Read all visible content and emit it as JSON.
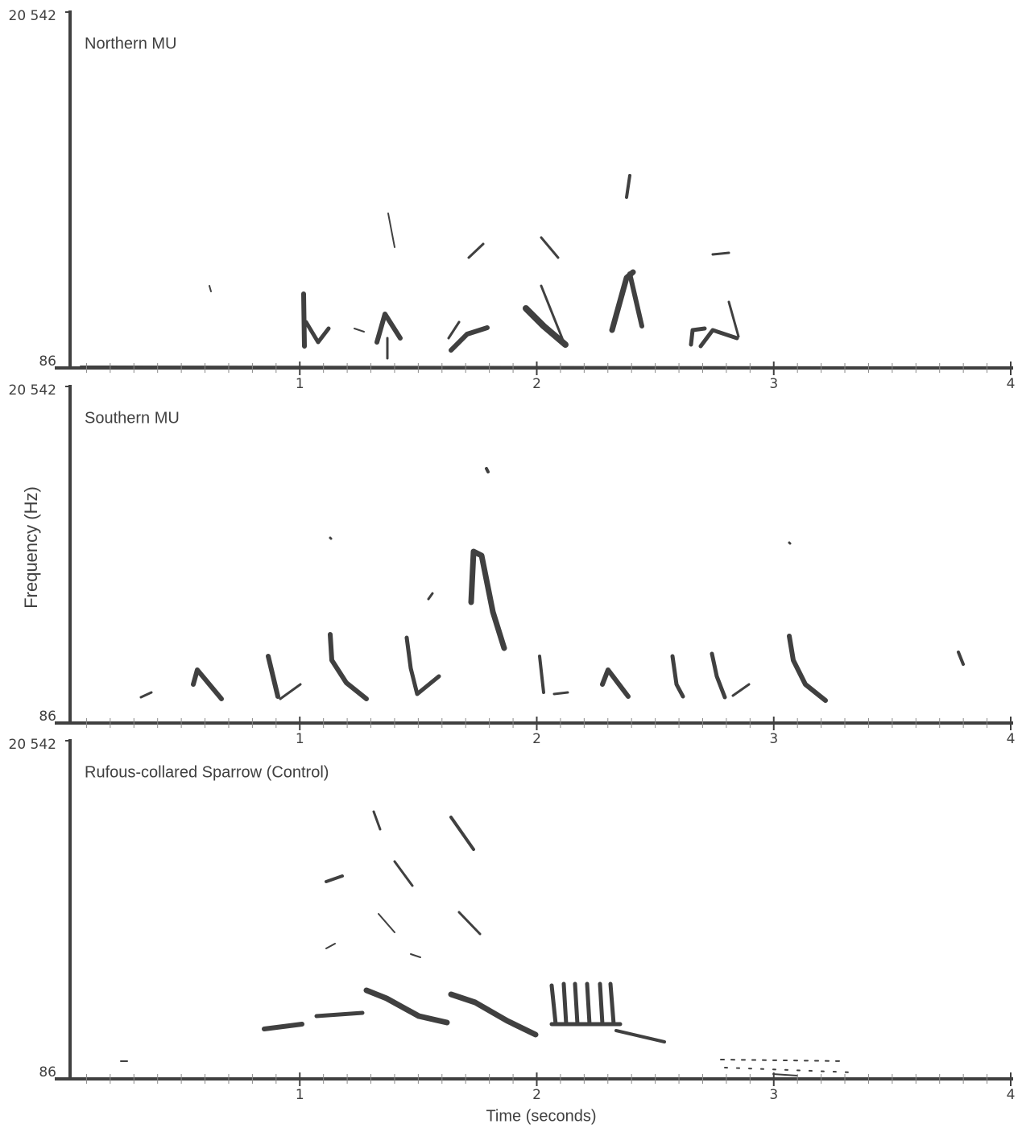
{
  "chart_data": [
    {
      "type": "spectrogram",
      "title": "Northern MU",
      "xlim": [
        0,
        4
      ],
      "xticks": [
        1,
        2,
        3,
        4
      ],
      "minor_xticks": [
        0.1,
        0.2,
        0.3,
        0.4,
        0.5,
        0.6,
        0.7,
        0.8,
        0.9,
        1.1,
        1.2,
        1.3,
        1.4,
        1.5,
        1.6,
        1.7,
        1.8,
        1.9,
        2.1,
        2.2,
        2.3,
        2.4,
        2.5,
        2.6,
        2.7,
        2.8,
        2.9,
        3.1,
        3.2,
        3.3,
        3.4,
        3.5,
        3.6,
        3.7,
        3.8,
        3.9
      ],
      "ylim": [
        86,
        20542
      ],
      "yticks": [
        86,
        {
          "value": 20542,
          "label": "20 542"
        }
      ],
      "color": "#404040"
    },
    {
      "type": "spectrogram",
      "title": "Southern MU",
      "y_label": "Frequency (Hz)",
      "xlim": [
        0,
        4
      ],
      "xticks": [
        1,
        2,
        3,
        4
      ],
      "minor_xticks": [
        0.1,
        0.2,
        0.3,
        0.4,
        0.5,
        0.6,
        0.7,
        0.8,
        0.9,
        1.1,
        1.2,
        1.3,
        1.4,
        1.5,
        1.6,
        1.7,
        1.8,
        1.9,
        2.1,
        2.2,
        2.3,
        2.4,
        2.5,
        2.6,
        2.7,
        2.8,
        2.9,
        3.1,
        3.2,
        3.3,
        3.4,
        3.5,
        3.6,
        3.7,
        3.8,
        3.9
      ],
      "ylim": [
        86,
        20542
      ],
      "yticks": [
        86,
        {
          "value": 20542,
          "label": "20 542"
        }
      ],
      "color": "#404040"
    },
    {
      "type": "spectrogram",
      "title": "Rufous-collared Sparrow (Control)",
      "x_label": "Time (seconds)",
      "xlim": [
        0,
        4
      ],
      "xticks": [
        1,
        2,
        3,
        4
      ],
      "minor_xticks": [
        0.1,
        0.2,
        0.3,
        0.4,
        0.5,
        0.6,
        0.7,
        0.8,
        0.9,
        1.1,
        1.2,
        1.3,
        1.4,
        1.5,
        1.6,
        1.7,
        1.8,
        1.9,
        2.1,
        2.2,
        2.3,
        2.4,
        2.5,
        2.6,
        2.7,
        2.8,
        2.9,
        3.1,
        3.2,
        3.3,
        3.4,
        3.5,
        3.6,
        3.7,
        3.8,
        3.9
      ],
      "ylim": [
        86,
        20542
      ],
      "yticks": [
        86,
        {
          "value": 20542,
          "label": "20 542"
        }
      ],
      "color": "#404040"
    }
  ]
}
